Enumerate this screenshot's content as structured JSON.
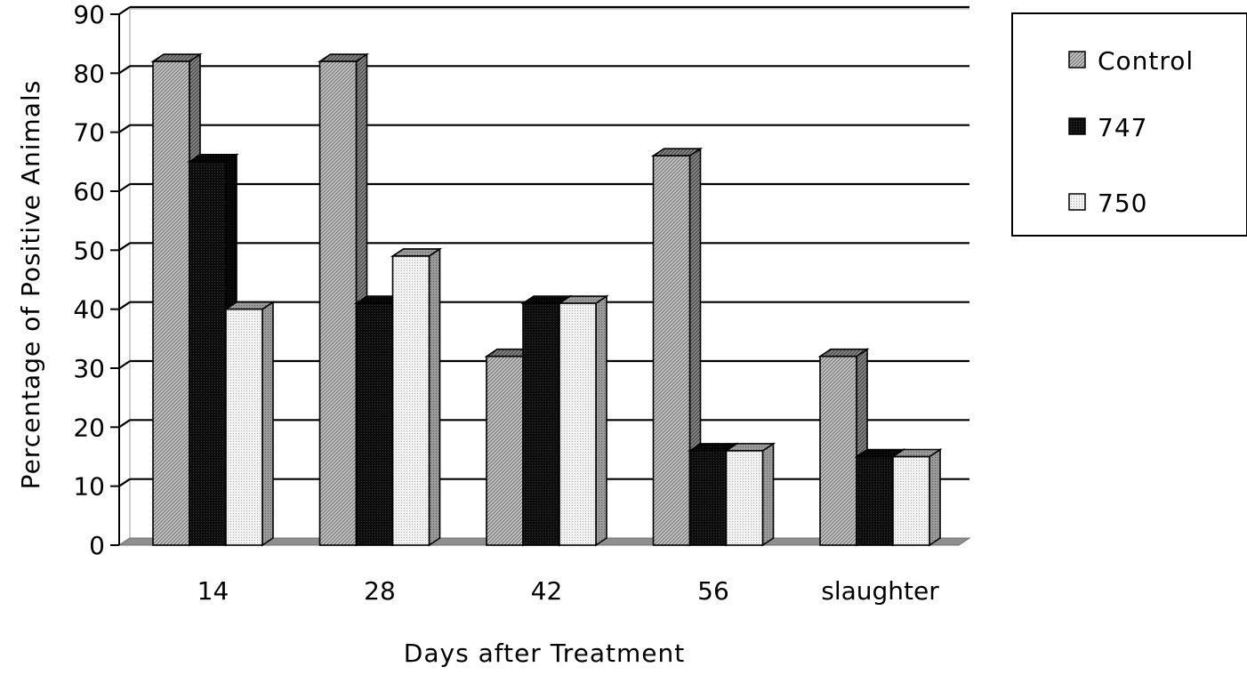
{
  "chart_data": {
    "type": "bar",
    "categories": [
      "14",
      "28",
      "42",
      "56",
      "slaughter"
    ],
    "series": [
      {
        "name": "Control",
        "values": [
          82,
          82,
          32,
          66,
          32
        ],
        "pattern": "diagonal-hatch"
      },
      {
        "name": "747",
        "values": [
          65,
          41,
          41,
          16,
          15
        ],
        "pattern": "dark-crosshatch"
      },
      {
        "name": "750",
        "values": [
          40,
          49,
          41,
          16,
          15
        ],
        "pattern": "light-dots"
      }
    ],
    "title": "",
    "xlabel": "Days after Treatment",
    "ylabel": "Percentage of Positive Animals",
    "ylim": [
      0,
      90
    ],
    "yticks": [
      "0",
      "10",
      "20",
      "30",
      "40",
      "50",
      "60",
      "70",
      "80",
      "90"
    ],
    "grid": "horizontal",
    "legend": "right",
    "style": "3d-bars"
  }
}
